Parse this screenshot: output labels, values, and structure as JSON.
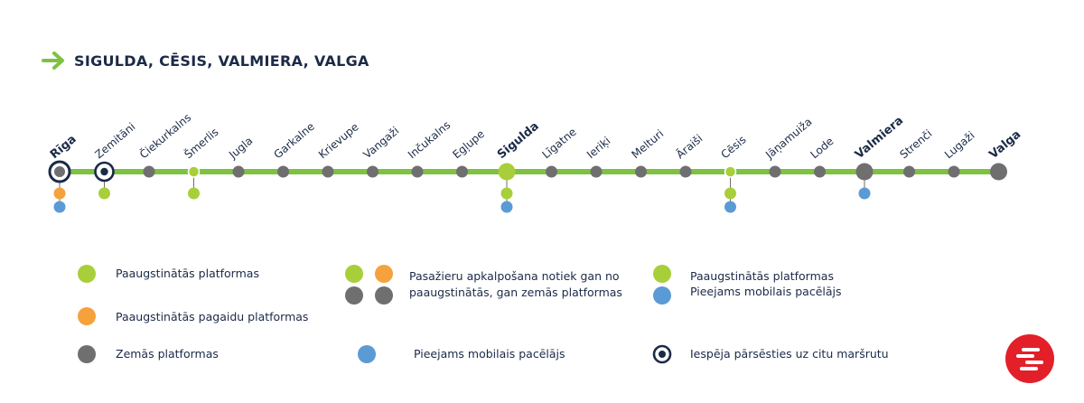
{
  "header": {
    "title": "SIGULDA, CĒSIS, VALMIERA, VALGA",
    "arrow_icon": "arrow-right-icon"
  },
  "colors": {
    "line": "#7dc242",
    "green": "#a8cf3a",
    "orange": "#f6a23c",
    "gray": "#6f6f6f",
    "blue": "#5b9bd5",
    "navy": "#1b2a47",
    "brand": "#e3202a"
  },
  "stations": [
    {
      "name": "Rīga",
      "marker": "transfer-large",
      "bold": true,
      "below": [
        "orange",
        "blue"
      ]
    },
    {
      "name": "Zemitāni",
      "marker": "transfer",
      "bold": false,
      "below": [
        "green"
      ]
    },
    {
      "name": "Čiekurkalns",
      "marker": "gray",
      "bold": false,
      "below": []
    },
    {
      "name": "Šmerlis",
      "marker": "green-ring",
      "bold": false,
      "below": [
        "green"
      ]
    },
    {
      "name": "Jugla",
      "marker": "gray",
      "bold": false,
      "below": []
    },
    {
      "name": "Garkalne",
      "marker": "gray",
      "bold": false,
      "below": []
    },
    {
      "name": "Krievupe",
      "marker": "gray",
      "bold": false,
      "below": []
    },
    {
      "name": "Vangaži",
      "marker": "gray",
      "bold": false,
      "below": []
    },
    {
      "name": "Inčukalns",
      "marker": "gray",
      "bold": false,
      "below": []
    },
    {
      "name": "Egļupe",
      "marker": "gray",
      "bold": false,
      "below": []
    },
    {
      "name": "Sigulda",
      "marker": "green-large",
      "bold": true,
      "below": [
        "green",
        "blue"
      ]
    },
    {
      "name": "Līgatne",
      "marker": "gray",
      "bold": false,
      "below": []
    },
    {
      "name": "Ieriķi",
      "marker": "gray",
      "bold": false,
      "below": []
    },
    {
      "name": "Melturi",
      "marker": "gray",
      "bold": false,
      "below": []
    },
    {
      "name": "Āraiši",
      "marker": "gray",
      "bold": false,
      "below": []
    },
    {
      "name": "Cēsis",
      "marker": "green-ring",
      "bold": false,
      "below": [
        "green",
        "blue"
      ]
    },
    {
      "name": "Jāņamuiža",
      "marker": "gray",
      "bold": false,
      "below": []
    },
    {
      "name": "Lode",
      "marker": "gray",
      "bold": false,
      "below": []
    },
    {
      "name": "Valmiera",
      "marker": "gray-large",
      "bold": true,
      "below": [
        "blue"
      ]
    },
    {
      "name": "Strenči",
      "marker": "gray",
      "bold": false,
      "below": []
    },
    {
      "name": "Lugaži",
      "marker": "gray",
      "bold": false,
      "below": []
    },
    {
      "name": "Valga",
      "marker": "gray-large",
      "bold": true,
      "below": []
    }
  ],
  "legend": {
    "raised": "Paaugstinātās platformas",
    "raised_partial": "Paaugstinātās pagaidu platformas",
    "low": "Zemās platformas",
    "mixed_line1": "Pasažieru apkalpošana notiek gan no",
    "mixed_line2": "paaugstinātās, gan zemās platformas",
    "lift": "Pieejams mobilais pacēlājs",
    "raised_lift_1": "Paaugstinātās platformas",
    "raised_lift_2": "Pieejams mobilais pacēlājs",
    "transfer": "Iespēja pārsēsties uz citu maršrutu"
  },
  "brand_icon": "railway-logo-icon"
}
